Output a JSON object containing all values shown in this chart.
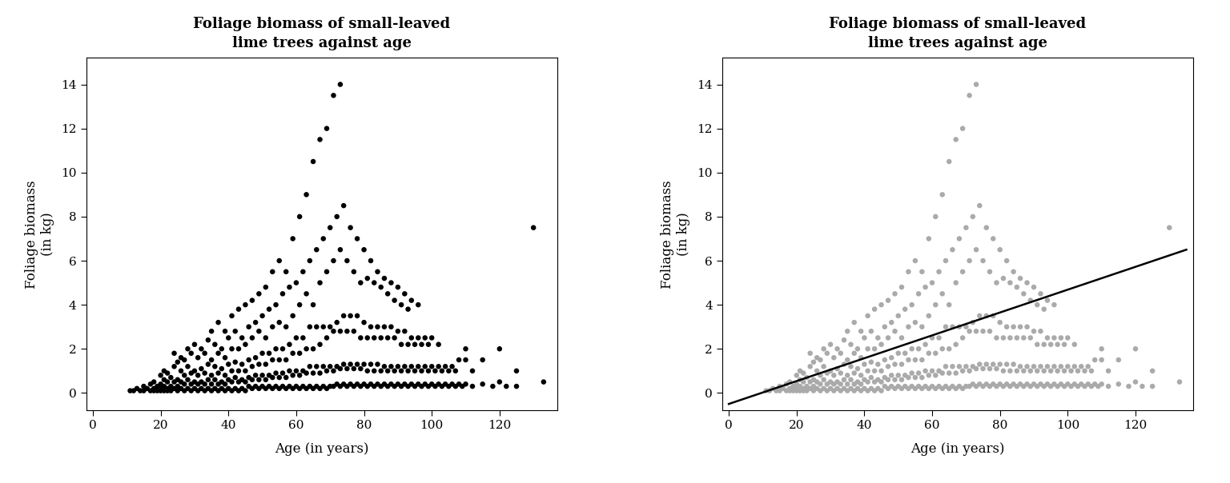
{
  "title": "Foliage biomass of small-leaved\nlime trees against age",
  "xlabel": "Age (in years)",
  "ylabel": "Foliage biomass\n(in kg)",
  "xlim": [
    -2,
    137
  ],
  "ylim": [
    -0.8,
    15.2
  ],
  "xticks": [
    0,
    20,
    40,
    60,
    80,
    100,
    120
  ],
  "yticks": [
    0,
    2,
    4,
    6,
    8,
    10,
    12,
    14
  ],
  "dot_color_left": "#000000",
  "dot_color_right": "#aaaaaa",
  "line_color": "#000000",
  "line_x": [
    0,
    135
  ],
  "line_y": [
    -0.5,
    6.5
  ],
  "background_color": "#ffffff",
  "title_fontsize": 13,
  "label_fontsize": 12,
  "tick_fontsize": 11,
  "dot_size": 22,
  "scatter_data": [
    [
      11,
      0.1
    ],
    [
      12,
      0.1
    ],
    [
      13,
      0.2
    ],
    [
      14,
      0.1
    ],
    [
      15,
      0.1
    ],
    [
      15,
      0.3
    ],
    [
      16,
      0.2
    ],
    [
      17,
      0.1
    ],
    [
      17,
      0.4
    ],
    [
      18,
      0.1
    ],
    [
      18,
      0.2
    ],
    [
      18,
      0.5
    ],
    [
      19,
      0.1
    ],
    [
      19,
      0.3
    ],
    [
      20,
      0.1
    ],
    [
      20,
      0.2
    ],
    [
      20,
      0.4
    ],
    [
      20,
      0.8
    ],
    [
      21,
      0.1
    ],
    [
      21,
      0.3
    ],
    [
      21,
      0.6
    ],
    [
      21,
      1.0
    ],
    [
      22,
      0.1
    ],
    [
      22,
      0.2
    ],
    [
      22,
      0.5
    ],
    [
      22,
      0.9
    ],
    [
      23,
      0.1
    ],
    [
      23,
      0.3
    ],
    [
      23,
      0.7
    ],
    [
      24,
      0.2
    ],
    [
      24,
      0.5
    ],
    [
      24,
      1.2
    ],
    [
      24,
      1.8
    ],
    [
      25,
      0.1
    ],
    [
      25,
      0.3
    ],
    [
      25,
      0.6
    ],
    [
      25,
      1.4
    ],
    [
      26,
      0.2
    ],
    [
      26,
      0.5
    ],
    [
      26,
      1.0
    ],
    [
      26,
      1.6
    ],
    [
      27,
      0.1
    ],
    [
      27,
      0.4
    ],
    [
      27,
      0.8
    ],
    [
      27,
      1.5
    ],
    [
      28,
      0.2
    ],
    [
      28,
      0.6
    ],
    [
      28,
      1.2
    ],
    [
      28,
      2.0
    ],
    [
      29,
      0.1
    ],
    [
      29,
      0.4
    ],
    [
      29,
      0.9
    ],
    [
      29,
      1.8
    ],
    [
      30,
      0.2
    ],
    [
      30,
      0.5
    ],
    [
      30,
      1.0
    ],
    [
      30,
      2.2
    ],
    [
      31,
      0.1
    ],
    [
      31,
      0.4
    ],
    [
      31,
      0.8
    ],
    [
      31,
      1.6
    ],
    [
      32,
      0.2
    ],
    [
      32,
      0.5
    ],
    [
      32,
      1.1
    ],
    [
      32,
      2.0
    ],
    [
      33,
      0.1
    ],
    [
      33,
      0.4
    ],
    [
      33,
      0.9
    ],
    [
      33,
      1.8
    ],
    [
      34,
      0.2
    ],
    [
      34,
      0.6
    ],
    [
      34,
      1.3
    ],
    [
      34,
      2.4
    ],
    [
      35,
      0.1
    ],
    [
      35,
      0.4
    ],
    [
      35,
      0.8
    ],
    [
      35,
      1.5
    ],
    [
      35,
      2.8
    ],
    [
      36,
      0.2
    ],
    [
      36,
      0.6
    ],
    [
      36,
      1.2
    ],
    [
      36,
      2.2
    ],
    [
      37,
      0.1
    ],
    [
      37,
      0.4
    ],
    [
      37,
      0.9
    ],
    [
      37,
      1.8
    ],
    [
      37,
      3.2
    ],
    [
      38,
      0.2
    ],
    [
      38,
      0.5
    ],
    [
      38,
      1.1
    ],
    [
      38,
      2.0
    ],
    [
      39,
      0.1
    ],
    [
      39,
      0.4
    ],
    [
      39,
      0.8
    ],
    [
      39,
      1.6
    ],
    [
      39,
      2.8
    ],
    [
      40,
      0.2
    ],
    [
      40,
      0.6
    ],
    [
      40,
      1.3
    ],
    [
      40,
      2.5
    ],
    [
      41,
      0.1
    ],
    [
      41,
      0.5
    ],
    [
      41,
      1.0
    ],
    [
      41,
      2.0
    ],
    [
      41,
      3.5
    ],
    [
      42,
      0.2
    ],
    [
      42,
      0.7
    ],
    [
      42,
      1.4
    ],
    [
      42,
      2.8
    ],
    [
      43,
      0.1
    ],
    [
      43,
      0.5
    ],
    [
      43,
      1.0
    ],
    [
      43,
      2.0
    ],
    [
      43,
      3.8
    ],
    [
      44,
      0.2
    ],
    [
      44,
      0.6
    ],
    [
      44,
      1.3
    ],
    [
      44,
      2.5
    ],
    [
      45,
      0.1
    ],
    [
      45,
      0.5
    ],
    [
      45,
      1.0
    ],
    [
      45,
      2.2
    ],
    [
      45,
      4.0
    ],
    [
      46,
      0.3
    ],
    [
      46,
      0.7
    ],
    [
      46,
      1.5
    ],
    [
      46,
      3.0
    ],
    [
      47,
      0.2
    ],
    [
      47,
      0.6
    ],
    [
      47,
      1.2
    ],
    [
      47,
      2.5
    ],
    [
      47,
      4.2
    ],
    [
      48,
      0.3
    ],
    [
      48,
      0.8
    ],
    [
      48,
      1.6
    ],
    [
      48,
      3.2
    ],
    [
      49,
      0.2
    ],
    [
      49,
      0.6
    ],
    [
      49,
      1.3
    ],
    [
      49,
      2.8
    ],
    [
      49,
      4.5
    ],
    [
      50,
      0.3
    ],
    [
      50,
      0.8
    ],
    [
      50,
      1.8
    ],
    [
      50,
      3.5
    ],
    [
      51,
      0.2
    ],
    [
      51,
      0.6
    ],
    [
      51,
      1.3
    ],
    [
      51,
      2.5
    ],
    [
      51,
      4.8
    ],
    [
      52,
      0.3
    ],
    [
      52,
      0.8
    ],
    [
      52,
      1.8
    ],
    [
      52,
      3.8
    ],
    [
      53,
      0.2
    ],
    [
      53,
      0.7
    ],
    [
      53,
      1.5
    ],
    [
      53,
      3.0
    ],
    [
      53,
      5.5
    ],
    [
      54,
      0.3
    ],
    [
      54,
      0.9
    ],
    [
      54,
      2.0
    ],
    [
      54,
      4.0
    ],
    [
      55,
      0.2
    ],
    [
      55,
      0.7
    ],
    [
      55,
      1.5
    ],
    [
      55,
      3.2
    ],
    [
      55,
      6.0
    ],
    [
      56,
      0.3
    ],
    [
      56,
      0.9
    ],
    [
      56,
      2.0
    ],
    [
      56,
      4.5
    ],
    [
      57,
      0.2
    ],
    [
      57,
      0.7
    ],
    [
      57,
      1.5
    ],
    [
      57,
      3.0
    ],
    [
      57,
      5.5
    ],
    [
      58,
      0.3
    ],
    [
      58,
      1.0
    ],
    [
      58,
      2.2
    ],
    [
      58,
      4.8
    ],
    [
      59,
      0.2
    ],
    [
      59,
      0.8
    ],
    [
      59,
      1.8
    ],
    [
      59,
      3.5
    ],
    [
      59,
      7.0
    ],
    [
      60,
      0.3
    ],
    [
      60,
      1.0
    ],
    [
      60,
      2.5
    ],
    [
      60,
      5.0
    ],
    [
      61,
      0.2
    ],
    [
      61,
      0.8
    ],
    [
      61,
      1.8
    ],
    [
      61,
      4.0
    ],
    [
      61,
      8.0
    ],
    [
      62,
      0.3
    ],
    [
      62,
      1.0
    ],
    [
      62,
      2.5
    ],
    [
      62,
      5.5
    ],
    [
      63,
      0.2
    ],
    [
      63,
      0.9
    ],
    [
      63,
      2.0
    ],
    [
      63,
      4.5
    ],
    [
      63,
      9.0
    ],
    [
      64,
      0.3
    ],
    [
      64,
      1.2
    ],
    [
      64,
      3.0
    ],
    [
      64,
      6.0
    ],
    [
      65,
      0.2
    ],
    [
      65,
      0.9
    ],
    [
      65,
      2.0
    ],
    [
      65,
      4.0
    ],
    [
      65,
      10.5
    ],
    [
      66,
      0.3
    ],
    [
      66,
      1.2
    ],
    [
      66,
      3.0
    ],
    [
      66,
      6.5
    ],
    [
      67,
      0.2
    ],
    [
      67,
      0.9
    ],
    [
      67,
      2.2
    ],
    [
      67,
      5.0
    ],
    [
      67,
      11.5
    ],
    [
      68,
      0.3
    ],
    [
      68,
      1.2
    ],
    [
      68,
      3.0
    ],
    [
      68,
      7.0
    ],
    [
      69,
      0.2
    ],
    [
      69,
      1.0
    ],
    [
      69,
      2.5
    ],
    [
      69,
      5.5
    ],
    [
      69,
      12.0
    ],
    [
      70,
      0.3
    ],
    [
      70,
      1.2
    ],
    [
      70,
      3.0
    ],
    [
      70,
      7.5
    ],
    [
      71,
      0.3
    ],
    [
      71,
      1.0
    ],
    [
      71,
      2.8
    ],
    [
      71,
      6.0
    ],
    [
      71,
      13.5
    ],
    [
      72,
      0.4
    ],
    [
      72,
      1.2
    ],
    [
      72,
      3.2
    ],
    [
      72,
      8.0
    ],
    [
      73,
      0.3
    ],
    [
      73,
      1.1
    ],
    [
      73,
      2.8
    ],
    [
      73,
      6.5
    ],
    [
      73,
      14.0
    ],
    [
      74,
      0.4
    ],
    [
      74,
      1.3
    ],
    [
      74,
      3.5
    ],
    [
      74,
      8.5
    ],
    [
      75,
      0.3
    ],
    [
      75,
      1.1
    ],
    [
      75,
      2.8
    ],
    [
      75,
      6.0
    ],
    [
      76,
      0.4
    ],
    [
      76,
      1.3
    ],
    [
      76,
      3.5
    ],
    [
      76,
      7.5
    ],
    [
      77,
      0.3
    ],
    [
      77,
      1.1
    ],
    [
      77,
      2.8
    ],
    [
      77,
      5.5
    ],
    [
      78,
      0.4
    ],
    [
      78,
      1.3
    ],
    [
      78,
      3.5
    ],
    [
      78,
      7.0
    ],
    [
      79,
      0.3
    ],
    [
      79,
      1.1
    ],
    [
      79,
      2.5
    ],
    [
      79,
      5.0
    ],
    [
      80,
      0.4
    ],
    [
      80,
      1.3
    ],
    [
      80,
      3.2
    ],
    [
      80,
      6.5
    ],
    [
      81,
      0.3
    ],
    [
      81,
      1.0
    ],
    [
      81,
      2.5
    ],
    [
      81,
      5.2
    ],
    [
      82,
      0.4
    ],
    [
      82,
      1.3
    ],
    [
      82,
      3.0
    ],
    [
      82,
      6.0
    ],
    [
      83,
      0.3
    ],
    [
      83,
      1.0
    ],
    [
      83,
      2.5
    ],
    [
      83,
      5.0
    ],
    [
      84,
      0.4
    ],
    [
      84,
      1.3
    ],
    [
      84,
      3.0
    ],
    [
      84,
      5.5
    ],
    [
      85,
      0.3
    ],
    [
      85,
      1.0
    ],
    [
      85,
      2.5
    ],
    [
      85,
      4.8
    ],
    [
      86,
      0.4
    ],
    [
      86,
      1.2
    ],
    [
      86,
      3.0
    ],
    [
      86,
      5.2
    ],
    [
      87,
      0.3
    ],
    [
      87,
      1.0
    ],
    [
      87,
      2.5
    ],
    [
      87,
      4.5
    ],
    [
      88,
      0.4
    ],
    [
      88,
      1.2
    ],
    [
      88,
      3.0
    ],
    [
      88,
      5.0
    ],
    [
      89,
      0.3
    ],
    [
      89,
      1.0
    ],
    [
      89,
      2.5
    ],
    [
      89,
      4.2
    ],
    [
      90,
      0.4
    ],
    [
      90,
      1.2
    ],
    [
      90,
      2.8
    ],
    [
      90,
      4.8
    ],
    [
      91,
      0.3
    ],
    [
      91,
      1.0
    ],
    [
      91,
      2.2
    ],
    [
      91,
      4.0
    ],
    [
      92,
      0.4
    ],
    [
      92,
      1.2
    ],
    [
      92,
      2.8
    ],
    [
      92,
      4.5
    ],
    [
      93,
      0.3
    ],
    [
      93,
      1.0
    ],
    [
      93,
      2.2
    ],
    [
      93,
      3.8
    ],
    [
      94,
      0.4
    ],
    [
      94,
      1.2
    ],
    [
      94,
      2.5
    ],
    [
      94,
      4.2
    ],
    [
      95,
      0.3
    ],
    [
      95,
      1.0
    ],
    [
      95,
      2.2
    ],
    [
      96,
      0.4
    ],
    [
      96,
      1.2
    ],
    [
      96,
      2.5
    ],
    [
      96,
      4.0
    ],
    [
      97,
      0.3
    ],
    [
      97,
      1.0
    ],
    [
      97,
      2.2
    ],
    [
      98,
      0.4
    ],
    [
      98,
      1.2
    ],
    [
      98,
      2.5
    ],
    [
      99,
      0.3
    ],
    [
      99,
      1.0
    ],
    [
      99,
      2.2
    ],
    [
      100,
      0.4
    ],
    [
      100,
      1.2
    ],
    [
      100,
      2.5
    ],
    [
      101,
      0.3
    ],
    [
      101,
      1.0
    ],
    [
      102,
      0.4
    ],
    [
      102,
      1.2
    ],
    [
      102,
      2.2
    ],
    [
      103,
      0.3
    ],
    [
      103,
      1.0
    ],
    [
      104,
      0.4
    ],
    [
      104,
      1.2
    ],
    [
      105,
      0.3
    ],
    [
      105,
      1.0
    ],
    [
      106,
      0.4
    ],
    [
      106,
      1.2
    ],
    [
      107,
      0.3
    ],
    [
      107,
      1.0
    ],
    [
      108,
      0.4
    ],
    [
      108,
      1.5
    ],
    [
      109,
      0.3
    ],
    [
      110,
      0.4
    ],
    [
      110,
      1.5
    ],
    [
      110,
      2.0
    ],
    [
      112,
      0.3
    ],
    [
      112,
      1.0
    ],
    [
      115,
      0.4
    ],
    [
      115,
      1.5
    ],
    [
      118,
      0.3
    ],
    [
      120,
      0.5
    ],
    [
      120,
      2.0
    ],
    [
      122,
      0.3
    ],
    [
      125,
      0.3
    ],
    [
      125,
      1.0
    ],
    [
      130,
      7.5
    ],
    [
      133,
      0.5
    ]
  ]
}
